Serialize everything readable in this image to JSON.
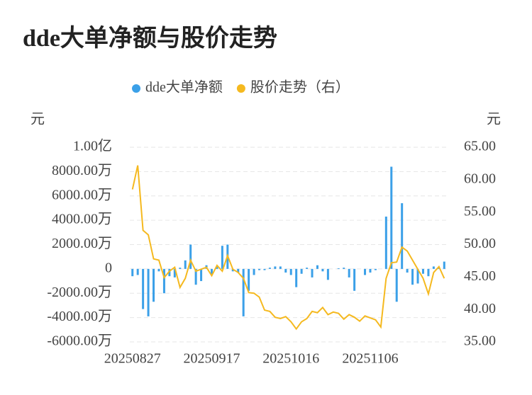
{
  "chart_data": {
    "type": "combo",
    "title": "dde大单净额与股价走势",
    "y_label": "元",
    "y2_label": "元",
    "categories": [
      "20250827",
      null,
      null,
      null,
      null,
      null,
      null,
      null,
      null,
      null,
      null,
      null,
      null,
      null,
      null,
      "20250917",
      null,
      null,
      null,
      null,
      null,
      null,
      null,
      null,
      null,
      null,
      null,
      null,
      null,
      null,
      "20251016",
      null,
      null,
      null,
      null,
      null,
      null,
      null,
      null,
      null,
      null,
      null,
      null,
      null,
      null,
      "20251106",
      null,
      null,
      null,
      null,
      null,
      null,
      null,
      null,
      null,
      null,
      null,
      null,
      null,
      null
    ],
    "series": [
      {
        "name": "dde大单净额",
        "type": "bar",
        "color": "#3ba0e8",
        "values": [
          -6000000,
          -5000000,
          -33000000,
          -39000000,
          -27000000,
          -2000000,
          -20000000,
          -6000000,
          -7000000,
          1000000,
          7000000,
          20000000,
          -13000000,
          -10000000,
          3000000,
          -5000000,
          2000000,
          19000000,
          20000000,
          -2000000,
          -3000000,
          -39000000,
          -18000000,
          -5000000,
          -1000000,
          -1000000,
          1000000,
          2000000,
          2000000,
          -3000000,
          -5000000,
          -15000000,
          -4000000,
          1000000,
          -7000000,
          3000000,
          -2000000,
          -9000000,
          0,
          500000,
          1000000,
          -7000000,
          -18000000,
          0,
          -5000000,
          -3000000,
          -1000000,
          0,
          43000000,
          84000000,
          -27000000,
          54000000,
          -3000000,
          -13000000,
          -12000000,
          -4000000,
          -6000000,
          2000000,
          1000000,
          6000000
        ]
      },
      {
        "name": "股价走势（右）",
        "type": "line",
        "axis": "y2",
        "color": "#f5b91f",
        "values": [
          58.5,
          62.2,
          52.2,
          51.5,
          47.8,
          47.6,
          44.9,
          45.9,
          46.5,
          43.4,
          44.8,
          47.6,
          45.9,
          46.2,
          46.5,
          45.2,
          46.8,
          45.9,
          48.3,
          46.2,
          45.7,
          44.8,
          42.6,
          42.5,
          41.9,
          39.9,
          39.7,
          38.8,
          38.6,
          38.9,
          38.1,
          37.0,
          38.1,
          38.6,
          39.7,
          39.5,
          40.3,
          39.2,
          39.6,
          39.4,
          38.5,
          39.2,
          38.8,
          38.2,
          39.0,
          38.7,
          38.4,
          37.3,
          44.8,
          47.2,
          47.3,
          49.6,
          49.0,
          47.6,
          46.2,
          44.8,
          42.4,
          45.7,
          46.6,
          44.8
        ]
      }
    ],
    "ylim": [
      -60000000,
      100000000
    ],
    "yticks": [
      {
        "value": -60000000,
        "label": "-6000.00万"
      },
      {
        "value": -40000000,
        "label": "-4000.00万"
      },
      {
        "value": -20000000,
        "label": "-2000.00万"
      },
      0,
      {
        "value": 20000000,
        "label": "2000.00万"
      },
      {
        "value": 40000000,
        "label": "4000.00万"
      },
      {
        "value": 60000000,
        "label": "6000.00万"
      },
      {
        "value": 80000000,
        "label": "8000.00万"
      },
      {
        "value": 100000000,
        "label": "1.00亿"
      }
    ],
    "y2lim": [
      35,
      65
    ],
    "y2ticks": [
      {
        "value": 35,
        "label": "35.00"
      },
      {
        "value": 40,
        "label": "40.00"
      },
      {
        "value": 45,
        "label": "45.00"
      },
      {
        "value": 50,
        "label": "50.00"
      },
      {
        "value": 55,
        "label": "55.00"
      },
      {
        "value": 60,
        "label": "60.00"
      },
      {
        "value": 65,
        "label": "65.00"
      }
    ],
    "grid": true,
    "legend": "top"
  }
}
